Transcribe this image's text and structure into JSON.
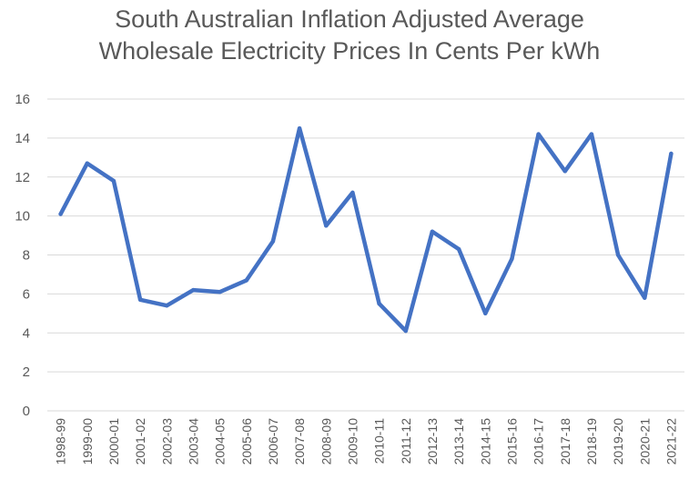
{
  "chart_data": {
    "type": "line",
    "title_lines": [
      "South Australian Inflation Adjusted Average",
      "Wholesale Electricity Prices In Cents Per kWh"
    ],
    "xlabel": "",
    "ylabel": "",
    "ylim": [
      0,
      16
    ],
    "yticks": [
      "0",
      "2",
      "4",
      "6",
      "8",
      "10",
      "12",
      "14",
      "16"
    ],
    "grid": true,
    "legend": "none",
    "categories": [
      "1998-99",
      "1999-00",
      "2000-01",
      "2001-02",
      "2002-03",
      "2003-04",
      "2004-05",
      "2005-06",
      "2006-07",
      "2007-08",
      "2008-09",
      "2009-10",
      "2010-11",
      "2011-12",
      "2012-13",
      "2013-14",
      "2014-15",
      "2015-16",
      "2016-17",
      "2017-18",
      "2018-19",
      "2019-20",
      "2020-21",
      "2021-22"
    ],
    "series": [
      {
        "name": "Price",
        "color": "#4472c4",
        "values": [
          10.1,
          12.7,
          11.8,
          5.7,
          5.4,
          6.2,
          6.1,
          6.7,
          8.7,
          14.5,
          9.5,
          11.2,
          5.5,
          4.1,
          9.2,
          8.3,
          5.0,
          7.8,
          14.2,
          12.3,
          14.2,
          8.0,
          5.8,
          13.2
        ]
      }
    ]
  }
}
